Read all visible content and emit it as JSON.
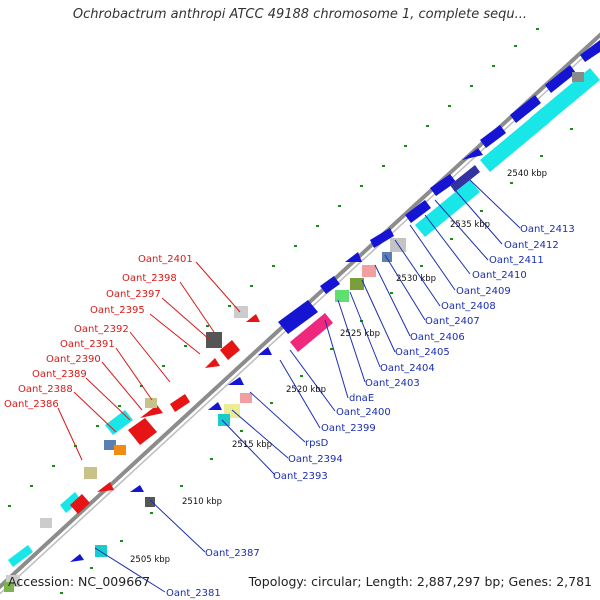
{
  "title": "Ochrobactrum anthropi ATCC 49188 chromosome 1, complete sequ...",
  "footer": {
    "accession": "Accession: NC_009667",
    "topology": "Topology: circular; Length: 2,887,297 bp; Genes: 2,781"
  },
  "kbp_labels": [
    "2505 kbp",
    "2510 kbp",
    "2515 kbp",
    "2520 kbp",
    "2525 kbp",
    "2530 kbp",
    "2535 kbp",
    "2540 kbp"
  ],
  "gene_labels_left": [
    "Oant_2401",
    "Oant_2398",
    "Oant_2397",
    "Oant_2395",
    "Oant_2392",
    "Oant_2391",
    "Oant_2390",
    "Oant_2389",
    "Oant_2388",
    "Oant_2386"
  ],
  "gene_labels_right": [
    "Oant_2413",
    "Oant_2412",
    "Oant_2411",
    "Oant_2410",
    "Oant_2409",
    "Oant_2408",
    "Oant_2407",
    "Oant_2406",
    "Oant_2405",
    "Oant_2404",
    "Oant_2403",
    "dnaE",
    "Oant_2400",
    "Oant_2399",
    "rpsD",
    "Oant_2394",
    "Oant_2393",
    "Oant_2387",
    "Oant_2381"
  ],
  "colors": {
    "backbone": "#8c8c8c",
    "cds_blue": "#1414d2",
    "cds_cyan": "#19e6e6",
    "cds_red": "#e61414",
    "cds_magenta": "#f0287d",
    "label_red": "#d81a1a",
    "label_blue": "#1c2fb0",
    "gc_dots": "#1a8c1a"
  }
}
